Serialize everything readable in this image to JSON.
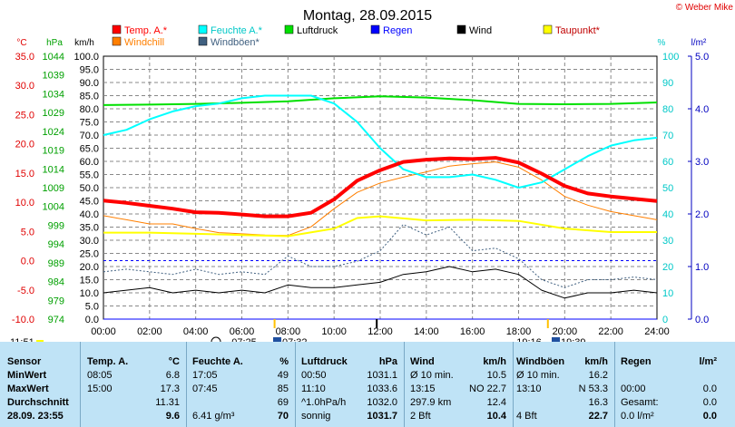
{
  "header": {
    "title": "Montag, 28.09.2015",
    "copyright": "© Weber Mike"
  },
  "legend": [
    {
      "label": "Temp. A.*",
      "color": "#ff0000"
    },
    {
      "label": "Feuchte A.*",
      "color": "#00ffff"
    },
    {
      "label": "Luftdruck",
      "color": "#00e000"
    },
    {
      "label": "Regen",
      "color": "#0000ff"
    },
    {
      "label": "Wind",
      "color": "#000000"
    },
    {
      "label": "Taupunkt*",
      "color": "#ffff00"
    },
    {
      "label": "Windchill",
      "color": "#ff7f00"
    },
    {
      "label": "Windböen*",
      "color": "#406080"
    }
  ],
  "axes": {
    "unit_c": "°C",
    "unit_hpa": "hPa",
    "unit_kmh": "km/h",
    "unit_pct": "%",
    "unit_lm2": "l/m²",
    "c_ticks": [
      "35.0",
      "30.0",
      "25.0",
      "20.0",
      "15.0",
      "10.0",
      "5.0",
      "0.0",
      "-5.0",
      "-10.0"
    ],
    "hpa_ticks": [
      "1044",
      "1039",
      "1034",
      "1029",
      "1024",
      "1019",
      "1014",
      "1009",
      "1004",
      "999",
      "994",
      "989",
      "984",
      "979",
      "974"
    ],
    "kmh_ticks": [
      "100.0",
      "95.0",
      "90.0",
      "85.0",
      "80.0",
      "75.0",
      "70.0",
      "65.0",
      "60.0",
      "55.0",
      "50.0",
      "45.0",
      "40.0",
      "35.0",
      "30.0",
      "25.0",
      "20.0",
      "15.0",
      "10.0",
      "5.0",
      "0.0"
    ],
    "pct_ticks": [
      "100",
      "90",
      "80",
      "70",
      "60",
      "50",
      "40",
      "30",
      "20",
      "10",
      "0"
    ],
    "lm2_ticks": [
      "5.0",
      "4.0",
      "3.0",
      "2.0",
      "1.0",
      "0.0"
    ],
    "x_ticks": [
      "00:00",
      "02:00",
      "04:00",
      "06:00",
      "08:00",
      "10:00",
      "12:00",
      "14:00",
      "16:00",
      "18:00",
      "20:00",
      "22:00",
      "24:00"
    ]
  },
  "sun": {
    "time_label": "11:51",
    "rise": "07:25",
    "rise2": "07:32",
    "set": "19:16",
    "set2": "19:39"
  },
  "chart_data": {
    "type": "line",
    "x_unit": "hours",
    "xlim": [
      0,
      24
    ],
    "series": [
      {
        "name": "Temp. A.*",
        "axis": "°C",
        "x": [
          0,
          1,
          2,
          3,
          4,
          5,
          6,
          7,
          8,
          9,
          10,
          11,
          12,
          13,
          14,
          15,
          16,
          17,
          18,
          19,
          20,
          21,
          22,
          23,
          24
        ],
        "values": [
          10.3,
          9.9,
          9.4,
          8.9,
          8.3,
          8.2,
          7.9,
          7.6,
          7.6,
          8.2,
          10.5,
          13.7,
          15.5,
          16.9,
          17.3,
          17.5,
          17.4,
          17.6,
          16.8,
          14.9,
          12.8,
          11.5,
          11.0,
          10.6,
          10.2
        ]
      },
      {
        "name": "Feuchte A.*",
        "axis": "%",
        "x": [
          0,
          1,
          2,
          3,
          4,
          5,
          6,
          7,
          8,
          9,
          10,
          11,
          12,
          13,
          14,
          15,
          16,
          17,
          18,
          19,
          20,
          21,
          22,
          23,
          24
        ],
        "values": [
          70,
          72,
          76,
          79,
          81,
          82,
          84,
          85,
          85,
          85,
          82,
          75,
          65,
          57,
          54,
          54,
          55,
          53,
          50,
          52,
          57,
          62,
          66,
          68,
          69
        ]
      },
      {
        "name": "Luftdruck",
        "axis": "hPa",
        "x": [
          0,
          2,
          4,
          6,
          8,
          10,
          12,
          14,
          16,
          18,
          20,
          22,
          24
        ],
        "values": [
          1031.0,
          1031.1,
          1031.3,
          1031.6,
          1032.0,
          1032.8,
          1033.3,
          1033.0,
          1032.3,
          1031.3,
          1031.2,
          1031.3,
          1031.7
        ]
      },
      {
        "name": "Regen",
        "axis": "l/m²",
        "x": [
          0,
          24
        ],
        "values": [
          0.0,
          0.0
        ]
      },
      {
        "name": "Wind",
        "axis": "km/h",
        "x": [
          0,
          1,
          2,
          3,
          4,
          5,
          6,
          7,
          8,
          9,
          10,
          11,
          12,
          13,
          14,
          15,
          16,
          17,
          18,
          19,
          20,
          21,
          22,
          23,
          24
        ],
        "values": [
          10,
          11,
          12,
          10,
          11,
          10,
          11,
          10,
          13,
          12,
          12,
          13,
          14,
          17,
          18,
          20,
          18,
          19,
          17,
          11,
          8,
          10,
          10,
          11,
          10
        ]
      },
      {
        "name": "Taupunkt*",
        "axis": "°C",
        "x": [
          0,
          2,
          4,
          6,
          8,
          10,
          11,
          12,
          14,
          16,
          18,
          20,
          22,
          24
        ],
        "values": [
          4.8,
          4.8,
          4.6,
          4.4,
          4.2,
          5.5,
          7.3,
          7.6,
          6.9,
          7.0,
          6.8,
          5.5,
          4.9,
          4.9
        ]
      },
      {
        "name": "Windchill",
        "axis": "°C",
        "x": [
          0,
          1,
          2,
          3,
          4,
          5,
          6,
          7,
          8,
          9,
          10,
          11,
          12,
          13,
          14,
          15,
          16,
          17,
          18,
          19,
          20,
          21,
          22,
          23,
          24
        ],
        "values": [
          7.7,
          7.0,
          6.3,
          6.3,
          5.5,
          4.8,
          4.6,
          4.4,
          4.3,
          5.8,
          8.9,
          11.7,
          13.3,
          14.3,
          15.2,
          16.2,
          16.6,
          16.9,
          16.0,
          13.8,
          11.0,
          9.5,
          8.4,
          7.7,
          7.0
        ]
      },
      {
        "name": "Windböen*",
        "axis": "km/h",
        "x": [
          0,
          1,
          2,
          3,
          4,
          5,
          6,
          7,
          8,
          9,
          10,
          11,
          12,
          13,
          14,
          15,
          16,
          17,
          18,
          19,
          20,
          21,
          22,
          23,
          24
        ],
        "values": [
          18,
          19,
          18,
          17,
          19,
          17,
          18,
          17,
          24,
          20,
          20,
          22,
          26,
          36,
          32,
          35,
          26,
          27,
          23,
          15,
          12,
          15,
          15,
          16,
          15
        ]
      }
    ]
  },
  "table": {
    "headers": {
      "sensor": "Sensor",
      "temp": "Temp. A.",
      "temp_unit": "°C",
      "hum": "Feuchte A.",
      "hum_unit": "%",
      "press": "Luftdruck",
      "press_unit": "hPa",
      "wind": "Wind",
      "wind_unit": "km/h",
      "gust": "Windböen",
      "gust_unit": "km/h",
      "rain": "Regen",
      "rain_unit": "l/m²"
    },
    "rows": [
      {
        "label": "MinWert",
        "c": [
          "08:05",
          "6.8",
          "17:05",
          "49",
          "00:50",
          "1031.1",
          "Ø 10 min.",
          "10.5",
          "Ø 10 min.",
          "16.2",
          "",
          ""
        ]
      },
      {
        "label": "MaxWert",
        "c": [
          "15:00",
          "17.3",
          "07:45",
          "85",
          "11:10",
          "1033.6",
          "13:15",
          "NO 22.7",
          "13:10",
          "N 53.3",
          "00:00",
          "0.0"
        ]
      },
      {
        "label": "Durchschnitt",
        "c": [
          "",
          "11.31",
          "",
          "69",
          "^1.0hPa/h",
          "1032.0",
          "297.9 km",
          "12.4",
          "",
          "16.3",
          "Gesamt:",
          "0.0"
        ]
      },
      {
        "label": "28.09. 23:55",
        "c": [
          "",
          "9.6",
          "6.41 g/m³",
          "70",
          "sonnig",
          "1031.7",
          "2 Bft",
          "10.4",
          "4 Bft",
          "22.7",
          "0.0 l/m²",
          "0.0"
        ]
      }
    ]
  }
}
